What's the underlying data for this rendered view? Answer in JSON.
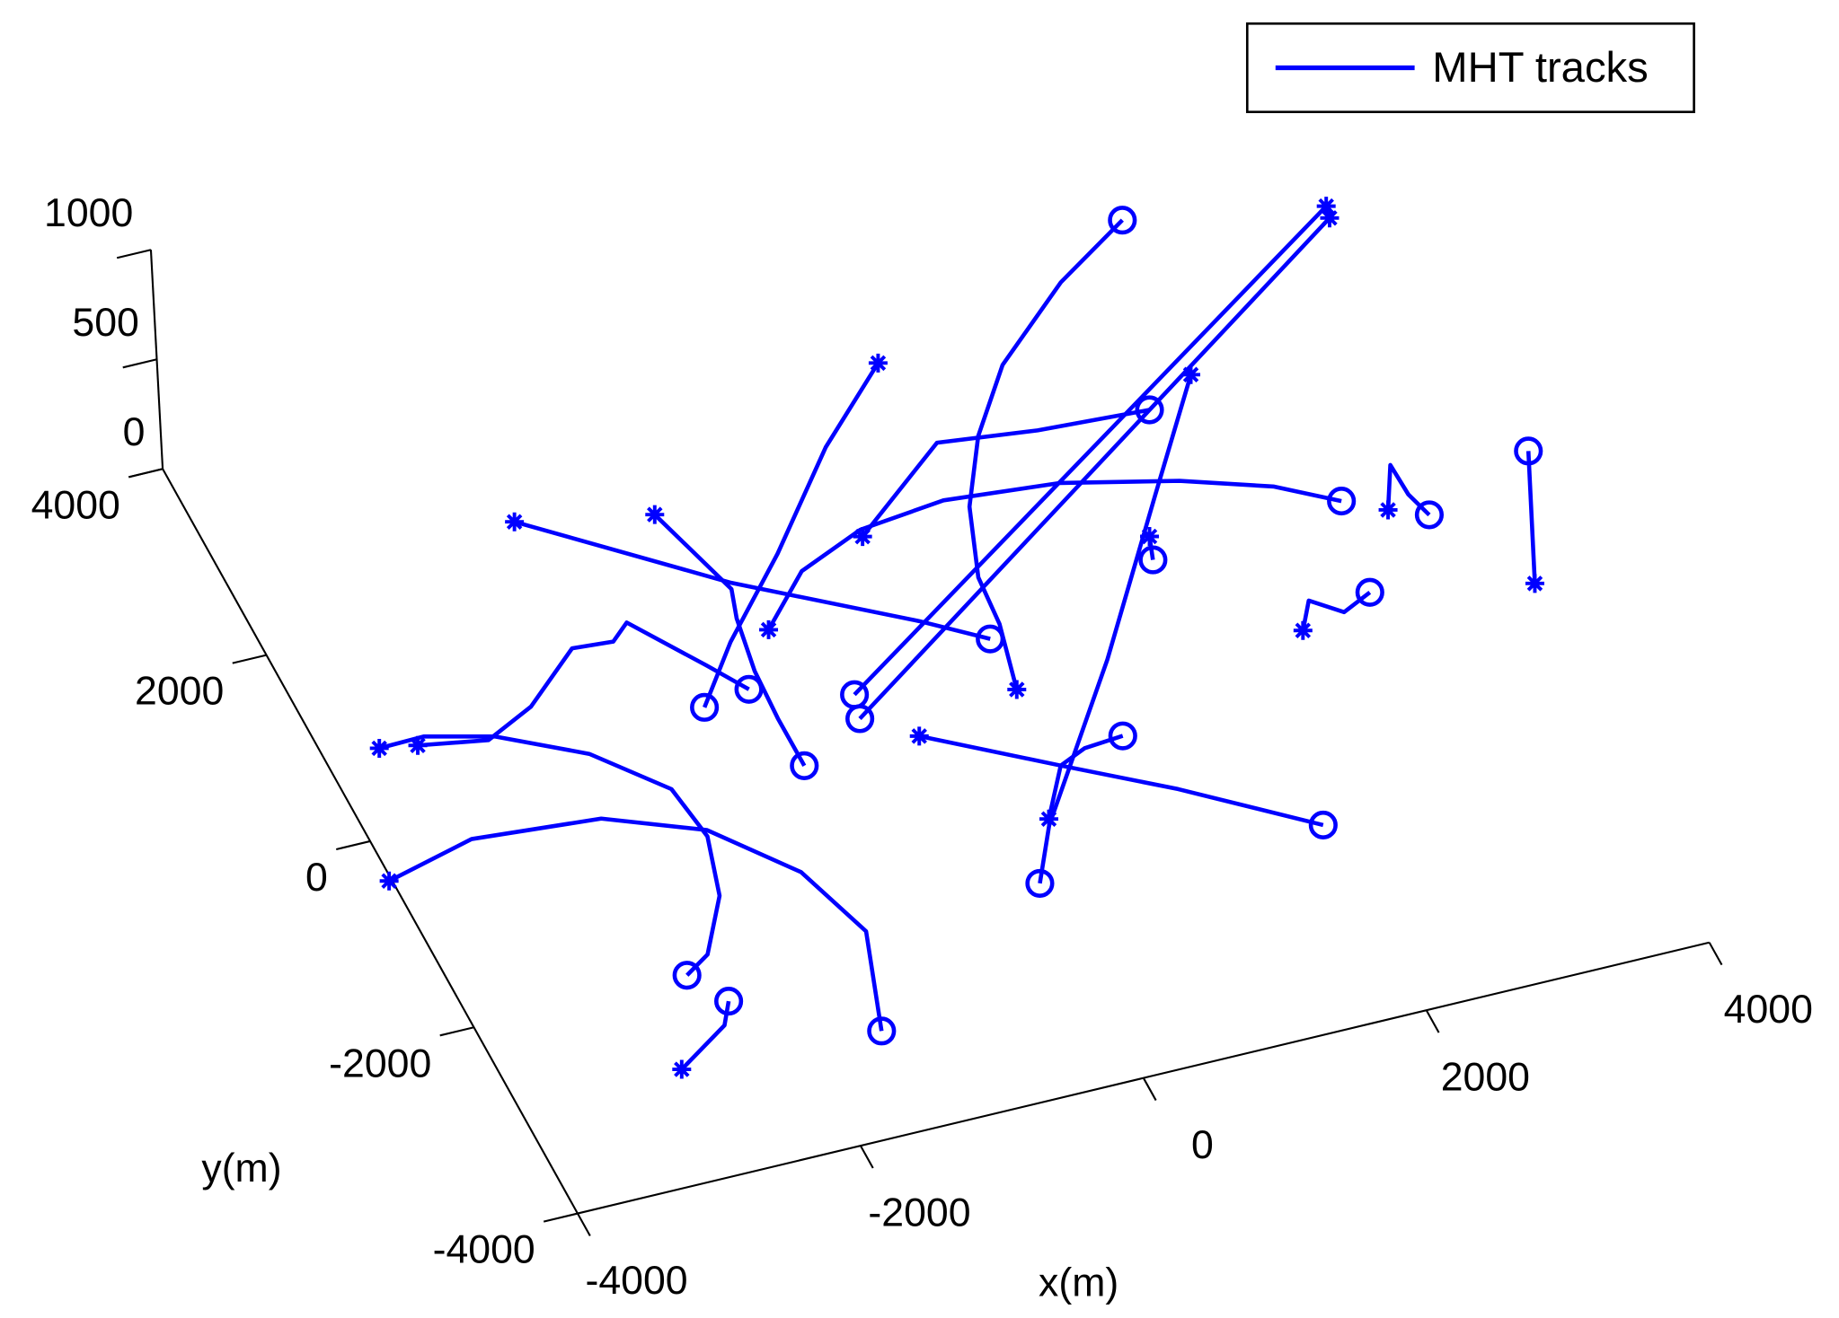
{
  "chart_data": {
    "type": "tracks3d",
    "xlabel": "x(m)",
    "ylabel": "y(m)",
    "xlim": [
      -4000,
      4000
    ],
    "xticks": [
      -4000,
      -2000,
      0,
      2000,
      4000
    ],
    "ylim": [
      -4000,
      4000
    ],
    "yticks": [
      -4000,
      -2000,
      0,
      2000,
      4000
    ],
    "zlim": [
      0,
      1000
    ],
    "zticks": [
      0,
      500,
      1000
    ],
    "legend": "upper right",
    "series": [
      {
        "name": "MHT tracks",
        "color": "#0000ff",
        "tracks": [
          {
            "x": [
              -4020,
              -3360,
              -2480,
              -1860,
              -1420,
              -1220,
              -1470
            ],
            "y": [
              -420,
              -210,
              -310,
              -660,
              -1270,
              -1980,
              -2960
            ]
          },
          {
            "x": [
              -3620,
              -3300,
              -2860,
              -2330,
              -1940,
              -1880,
              -2010,
              -2290,
              -2490
            ],
            "y": [
              860,
              870,
              710,
              330,
              -190,
              -720,
              -1310,
              -1840,
              -1990
            ]
          },
          {
            "x": [
              -2850,
              -2430,
              -2320
            ],
            "y": [
              -2870,
              -2550,
              -2330
            ]
          },
          {
            "x": [
              -3370,
              -2910,
              -2530,
              -2070,
              -1790,
              -1640,
              -1290,
              -1110
            ],
            "y": [
              800,
              690,
              910,
              1370,
              1340,
              1490,
              900,
              580
            ]
          },
          {
            "x": [
              -1990,
              -850,
              190,
              570
            ],
            "y": [
              2700,
              1630,
              840,
              510
            ]
          },
          {
            "x": [
              -1090,
              -870,
              -940,
              -1010,
              -1030,
              -1030
            ],
            "y": [
              2450,
              1570,
              1280,
              740,
              240,
              -270
            ]
          },
          {
            "x": [
              830,
              210,
              -460,
              -1060,
              -1450
            ],
            "y": [
              3380,
              2700,
              1800,
              1070,
              510
            ]
          },
          {
            "x": [
              -780,
              -370,
              140,
              760,
              1550,
              2300,
              2870,
              3240
            ],
            "y": [
              1100,
              1580,
              1840,
              1930,
              1830,
              1580,
              1310,
              1020
            ]
          },
          {
            "x": [
              130,
              920,
              1590,
              2360
            ],
            "y": [
              1770,
              2490,
              2380,
              2320
            ]
          },
          {
            "x": [
              560,
              680,
              710,
              900,
              1200,
              1600,
              2250,
              2850
            ],
            "y": [
              -30,
              630,
              1120,
              1810,
              2460,
              3080,
              3730,
              4180
            ]
          },
          {
            "x": [
              4170,
              -470
            ],
            "y": [
              3850,
              290
            ]
          },
          {
            "x": [
              4150,
              -520
            ],
            "y": [
              3730,
              50
            ]
          },
          {
            "x": [
              2740,
              2100,
              1230,
              760,
              290,
              30
            ],
            "y": [
              2560,
              1500,
              50,
              -670,
              -1390,
              -1920
            ]
          },
          {
            "x": [
              -210,
              570,
              1220,
              2000
            ],
            "y": [
              -250,
              -850,
              -1340,
              -2010
            ]
          },
          {
            "x": [
              310,
              570,
              780,
              1060
            ],
            "y": [
              -1330,
              -850,
              -740,
              -710
            ]
          },
          {
            "x": [
              3500,
              3670,
              3680,
              3740
            ],
            "y": [
              830,
              1250,
              930,
              690
            ]
          },
          {
            "x": [
              2550,
              2690,
              2870,
              3100
            ],
            "y": [
              -120,
              150,
              -40,
              90
            ]
          },
          {
            "x": [
              4160,
              4580
            ],
            "y": [
              -200,
              1070
            ]
          },
          {
            "x": [
              1920,
              1860
            ],
            "y": [
              1120,
              890
            ]
          }
        ]
      }
    ]
  }
}
